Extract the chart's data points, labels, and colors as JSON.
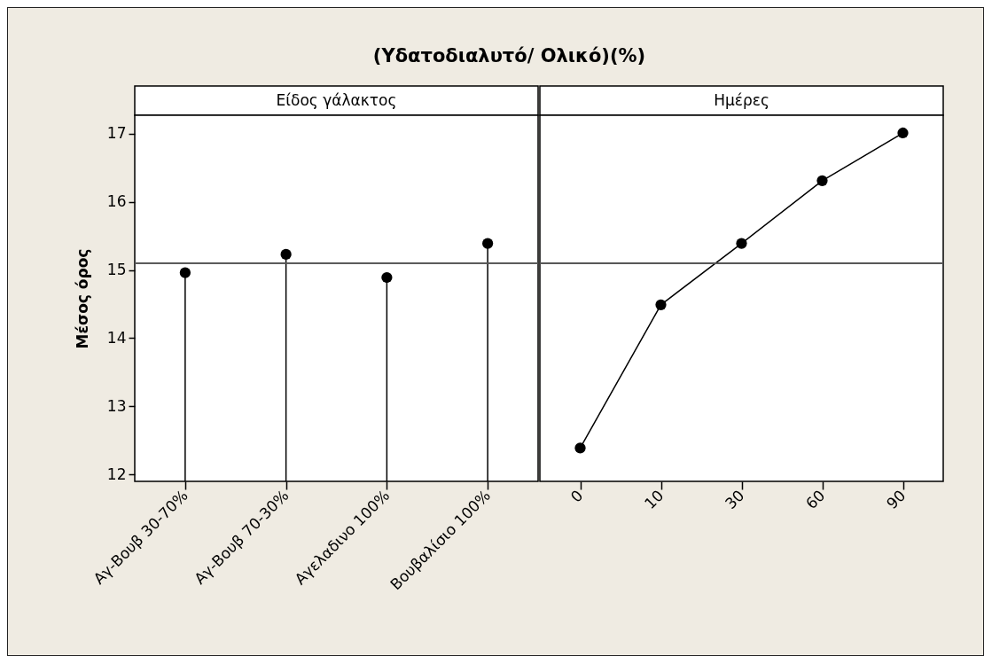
{
  "chart_data": [
    {
      "type": "lollipop",
      "title": "(Υδατοδιαλυτό/ Ολικό)(%)",
      "xlabel": "Είδος γάλακτος",
      "ylabel": "Μέσος όρος",
      "categories": [
        "Αγ-Βουβ 30-70%",
        "Αγ-Βουβ 70-30%",
        "Αγελαδινο 100%",
        "Βουβαλίσιο 100%"
      ],
      "values": [
        14.96,
        15.23,
        14.89,
        15.39
      ],
      "color": "#000000",
      "marker": "circle",
      "ylim": [
        11.9,
        17.27
      ],
      "yticks": [
        12,
        13,
        14,
        15,
        16,
        17
      ],
      "ref_lines": [
        {
          "axis": "y",
          "value": 15.1,
          "color": "#555555"
        }
      ]
    },
    {
      "type": "line",
      "xlabel": "Ημέρες",
      "categories": [
        "0",
        "10",
        "30",
        "60",
        "90"
      ],
      "values": [
        12.39,
        14.49,
        15.39,
        16.31,
        17.01
      ],
      "color": "#000000",
      "marker": "circle",
      "ylim": [
        11.9,
        17.27
      ],
      "tick_labels": "x",
      "ref_lines": [
        {
          "axis": "y",
          "value": 15.1,
          "color": "#555555"
        }
      ]
    }
  ]
}
